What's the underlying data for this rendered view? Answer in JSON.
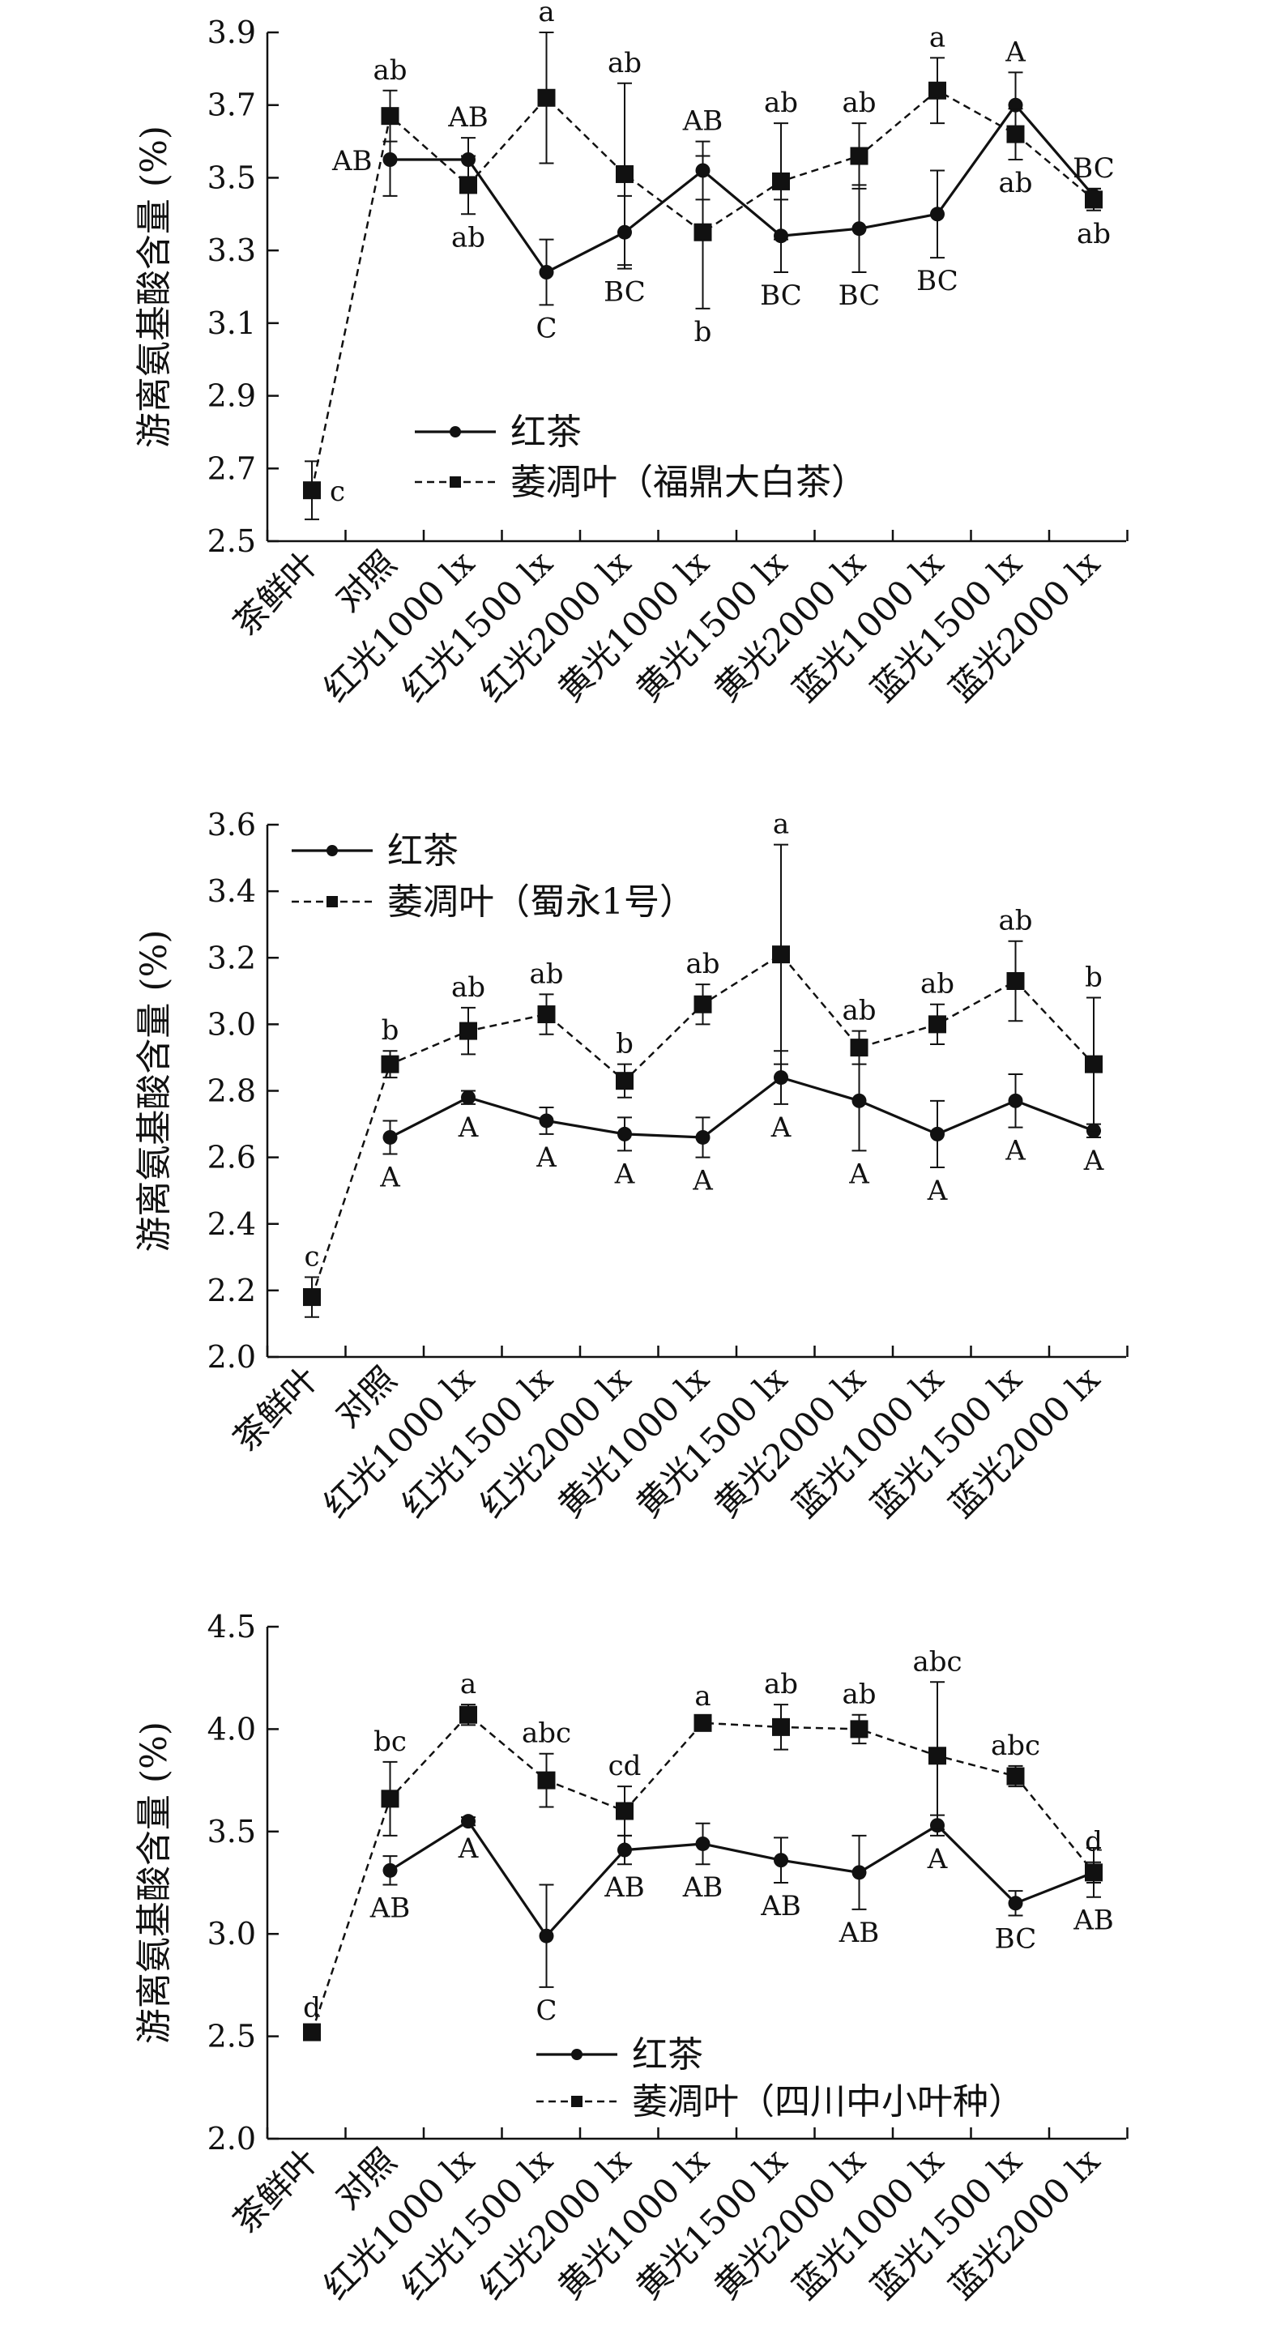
{
  "chart_data": [
    {
      "type": "line",
      "ylabel": "游离氨基酸含量 (%)",
      "ylim": [
        2.5,
        3.9
      ],
      "yticks": [
        "2.5",
        "2.7",
        "2.9",
        "3.1",
        "3.3",
        "3.5",
        "3.7",
        "3.9"
      ],
      "categories": [
        "茶鲜叶",
        "对照",
        "红光1000 lx",
        "红光1500 lx",
        "红光2000 lx",
        "黄光1000 lx",
        "黄光1500 lx",
        "黄光2000 lx",
        "蓝光1000 lx",
        "蓝光1500 lx",
        "蓝光2000 lx"
      ],
      "legend_position": "center-left",
      "series": [
        {
          "name": "红茶",
          "style": "solid",
          "marker": "circle",
          "values": [
            null,
            3.55,
            3.55,
            3.24,
            3.35,
            3.52,
            3.34,
            3.36,
            3.4,
            3.7,
            3.45
          ],
          "errors": [
            null,
            0.1,
            0.06,
            0.09,
            0.1,
            0.08,
            0.1,
            0.12,
            0.12,
            0.09,
            0.02
          ],
          "labels": [
            "",
            "AB",
            "AB",
            "C",
            "BC",
            "AB",
            "BC",
            "BC",
            "BC",
            "A",
            "BC"
          ]
        },
        {
          "name": "萎凋叶（福鼎大白茶）",
          "style": "dashed",
          "marker": "square",
          "values": [
            2.64,
            3.67,
            3.48,
            3.72,
            3.51,
            3.35,
            3.49,
            3.56,
            3.74,
            3.62,
            3.44
          ],
          "errors": [
            0.08,
            0.07,
            0.08,
            0.18,
            0.25,
            0.21,
            0.16,
            0.09,
            0.09,
            0.07,
            0.03
          ],
          "labels": [
            "c",
            "ab",
            "ab",
            "a",
            "ab",
            "b",
            "ab",
            "ab",
            "a",
            "ab",
            "ab"
          ]
        }
      ]
    },
    {
      "type": "line",
      "ylabel": "游离氨基酸含量 (%)",
      "ylim": [
        2.0,
        3.6
      ],
      "yticks": [
        "2.0",
        "2.2",
        "2.4",
        "2.6",
        "2.8",
        "3.0",
        "3.2",
        "3.4",
        "3.6"
      ],
      "categories": [
        "茶鲜叶",
        "对照",
        "红光1000 lx",
        "红光1500 lx",
        "红光2000 lx",
        "黄光1000 lx",
        "黄光1500 lx",
        "黄光2000 lx",
        "蓝光1000 lx",
        "蓝光1500 lx",
        "蓝光2000 lx"
      ],
      "legend_position": "top-left",
      "series": [
        {
          "name": "红茶",
          "style": "solid",
          "marker": "circle",
          "values": [
            null,
            2.66,
            2.78,
            2.71,
            2.67,
            2.66,
            2.84,
            2.77,
            2.67,
            2.77,
            2.68
          ],
          "errors": [
            null,
            0.05,
            0.02,
            0.04,
            0.05,
            0.06,
            0.08,
            0.15,
            0.1,
            0.08,
            0.02
          ],
          "labels": [
            "",
            "A",
            "A",
            "A",
            "A",
            "A",
            "A",
            "A",
            "A",
            "A",
            "A"
          ]
        },
        {
          "name": "萎凋叶（蜀永1号）",
          "style": "dashed",
          "marker": "square",
          "values": [
            2.18,
            2.88,
            2.98,
            3.03,
            2.83,
            3.06,
            3.21,
            2.93,
            3.0,
            3.13,
            2.88
          ],
          "errors": [
            0.06,
            0.04,
            0.07,
            0.06,
            0.05,
            0.06,
            0.33,
            0.05,
            0.06,
            0.12,
            0.2
          ],
          "labels": [
            "c",
            "b",
            "ab",
            "ab",
            "b",
            "ab",
            "a",
            "ab",
            "ab",
            "ab",
            "b"
          ]
        }
      ]
    },
    {
      "type": "line",
      "ylabel": "游离氨基酸含量 (%)",
      "ylim": [
        2.0,
        4.5
      ],
      "yticks": [
        "2.0",
        "2.5",
        "3.0",
        "3.5",
        "4.0",
        "4.5"
      ],
      "categories": [
        "茶鲜叶",
        "对照",
        "红光1000 lx",
        "红光1500 lx",
        "红光2000 lx",
        "黄光1000 lx",
        "黄光1500 lx",
        "黄光2000 lx",
        "蓝光1000 lx",
        "蓝光1500 lx",
        "蓝光2000 lx"
      ],
      "legend_position": "bottom-center",
      "series": [
        {
          "name": "红茶",
          "style": "solid",
          "marker": "circle",
          "values": [
            null,
            3.31,
            3.55,
            2.99,
            3.41,
            3.44,
            3.36,
            3.3,
            3.53,
            3.15,
            3.3
          ],
          "errors": [
            null,
            0.07,
            0.02,
            0.25,
            0.07,
            0.1,
            0.11,
            0.18,
            0.05,
            0.06,
            0.12
          ],
          "labels": [
            "",
            "AB",
            "A",
            "C",
            "AB",
            "AB",
            "AB",
            "AB",
            "A",
            "BC",
            "AB"
          ]
        },
        {
          "name": "萎凋叶（四川中小叶种）",
          "style": "dashed",
          "marker": "square",
          "values": [
            2.52,
            3.66,
            4.07,
            3.75,
            3.6,
            4.03,
            4.01,
            4.0,
            3.87,
            3.77,
            3.3
          ],
          "errors": [
            0.02,
            0.18,
            0.05,
            0.13,
            0.12,
            0.03,
            0.11,
            0.07,
            0.36,
            0.05,
            0.05
          ],
          "labels": [
            "d",
            "bc",
            "a",
            "abc",
            "cd",
            "a",
            "ab",
            "ab",
            "abc",
            "abc",
            "d"
          ]
        }
      ]
    }
  ]
}
